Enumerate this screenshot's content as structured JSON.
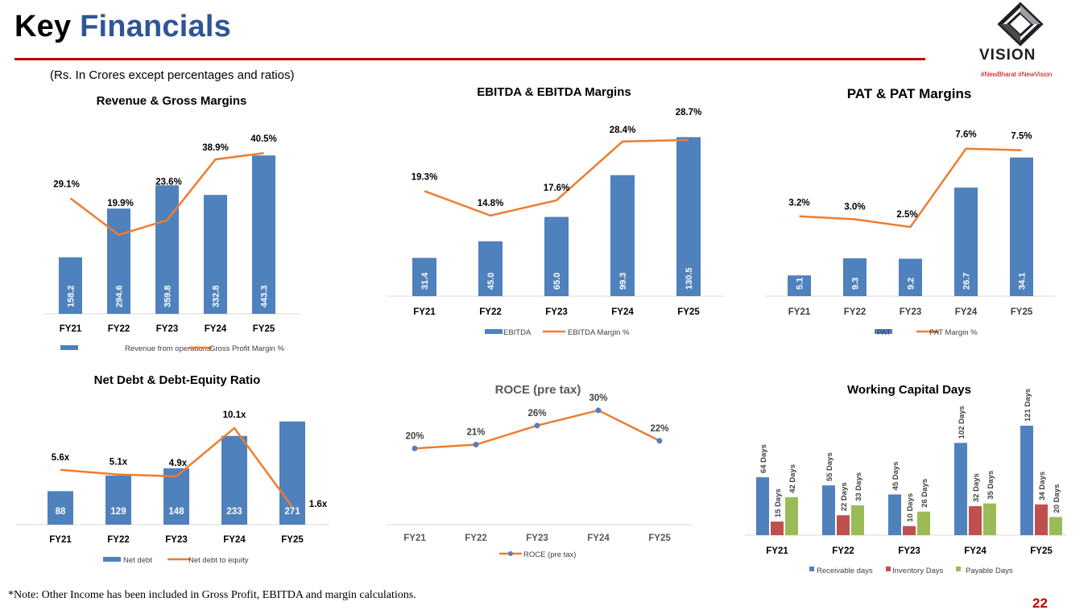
{
  "header": {
    "title_part1": "Key",
    "title_part2": "Financials",
    "subnote": "(Rs. In Crores except percentages and ratios)",
    "logo_text": "VISION",
    "tagline": "#NewBharat #NewVision",
    "accent_color": "#c00000",
    "title_color": "#2f5597"
  },
  "footer": {
    "note": "*Note: Other Income has been included in Gross Profit, EBITDA and margin calculations.",
    "page_number": "22"
  },
  "colors": {
    "bar": "#4f81bd",
    "line": "#ed7d31",
    "red": "#c0504d",
    "green": "#9bbb59",
    "marker": "#5a7dbd"
  },
  "chart_data": [
    {
      "id": "revenue",
      "type": "bar+line",
      "title": "Revenue & Gross Margins",
      "categories": [
        "FY21",
        "FY22",
        "FY23",
        "FY24",
        "FY25"
      ],
      "series": [
        {
          "name": "Revenue from operations",
          "kind": "bar",
          "values": [
            158.2,
            294.6,
            359.8,
            332.8,
            443.3
          ],
          "labels": [
            "158.2",
            "294.6",
            "359.8",
            "332.8",
            "443.3"
          ]
        },
        {
          "name": "Gross Profit Margin %",
          "kind": "line",
          "values": [
            29.1,
            19.9,
            23.6,
            38.9,
            40.5
          ],
          "labels": [
            "29.1%",
            "19.9%",
            "23.6%",
            "38.9%",
            "40.5%"
          ]
        }
      ],
      "bar_max": 500,
      "line_range": [
        0,
        45
      ]
    },
    {
      "id": "ebitda",
      "type": "bar+line",
      "title": "EBITDA & EBITDA Margins",
      "categories": [
        "FY21",
        "FY22",
        "FY23",
        "FY24",
        "FY25"
      ],
      "series": [
        {
          "name": "EBITDA",
          "kind": "bar",
          "values": [
            31.4,
            45.0,
            65.0,
            99.3,
            130.5
          ],
          "labels": [
            "31.4",
            "45.0",
            "65.0",
            "99.3",
            "130.5"
          ]
        },
        {
          "name": "EBITDA Margin %",
          "kind": "line",
          "values": [
            19.3,
            14.8,
            17.6,
            28.4,
            28.7
          ],
          "labels": [
            "19.3%",
            "14.8%",
            "17.6%",
            "28.4%",
            "28.7%"
          ]
        }
      ],
      "bar_max": 140,
      "line_range": [
        0,
        34
      ]
    },
    {
      "id": "pat",
      "type": "bar+line",
      "title": "PAT & PAT Margins",
      "categories": [
        "FY21",
        "FY22",
        "FY23",
        "FY24",
        "FY25"
      ],
      "series": [
        {
          "name": "PAT",
          "kind": "bar",
          "values": [
            5.1,
            9.3,
            9.2,
            26.7,
            34.1
          ],
          "labels": [
            "5.1",
            "9.3",
            "9.2",
            "26.7",
            "34.1"
          ]
        },
        {
          "name": "PAT Margin %",
          "kind": "line",
          "values": [
            3.2,
            3.0,
            2.5,
            7.6,
            7.5
          ],
          "labels": [
            "3.2%",
            "3.0%",
            "2.5%",
            "7.6%",
            "7.5%"
          ]
        }
      ],
      "bar_max": 38,
      "line_range": [
        -2,
        9
      ]
    },
    {
      "id": "netdebt",
      "type": "bar+line",
      "title": "Net Debt & Debt-Equity Ratio",
      "categories": [
        "FY21",
        "FY22",
        "FY23",
        "FY24",
        "FY25"
      ],
      "series": [
        {
          "name": "Net debt",
          "kind": "bar",
          "values": [
            88,
            129,
            148,
            233,
            271
          ],
          "labels": [
            "88",
            "129",
            "148",
            "233",
            "271"
          ]
        },
        {
          "name": "Net debt to equity",
          "kind": "line",
          "values": [
            5.6,
            5.1,
            4.9,
            10.1,
            1.6
          ],
          "labels": [
            "5.6x",
            "5.1x",
            "4.9x",
            "10.1x",
            "1.6x"
          ]
        }
      ],
      "bar_max": 300,
      "line_range": [
        1.6,
        12
      ]
    },
    {
      "id": "roce",
      "type": "line",
      "title": "ROCE (pre tax)",
      "categories": [
        "FY21",
        "FY22",
        "FY23",
        "FY24",
        "FY25"
      ],
      "series": [
        {
          "name": "ROCE (pre tax)",
          "kind": "line",
          "values": [
            20,
            21,
            26,
            30,
            22
          ],
          "labels": [
            "20%",
            "21%",
            "26%",
            "30%",
            "22%"
          ]
        }
      ],
      "line_range": [
        0,
        38
      ]
    },
    {
      "id": "wc",
      "type": "grouped-bar",
      "title": "Working Capital Days",
      "categories": [
        "FY21",
        "FY22",
        "FY23",
        "FY24",
        "FY25"
      ],
      "series": [
        {
          "name": "Receivable days",
          "values": [
            64,
            55,
            45,
            102,
            121
          ],
          "labels": [
            "64 Days",
            "55 Days",
            "45 Days",
            "102 Days",
            "121 Days"
          ]
        },
        {
          "name": "Inventory Days",
          "values": [
            15,
            22,
            10,
            32,
            34
          ],
          "labels": [
            "15 Days",
            "22 Days",
            "10 Days",
            "32 Days",
            "34 Days"
          ]
        },
        {
          "name": "Payable Days",
          "values": [
            42,
            33,
            26,
            35,
            20
          ],
          "labels": [
            "42 Days",
            "33 Days",
            "26 Days",
            "35 Days",
            "20 Days"
          ]
        }
      ],
      "bar_max": 121
    }
  ]
}
